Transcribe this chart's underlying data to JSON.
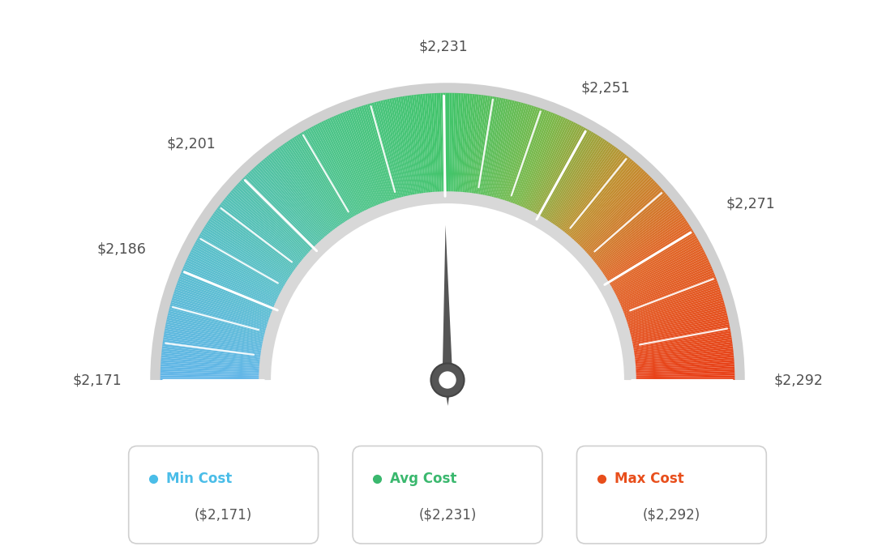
{
  "min_val": 2171,
  "max_val": 2292,
  "avg_val": 2231,
  "tick_labels": [
    "$2,171",
    "$2,186",
    "$2,201",
    "$2,231",
    "$2,251",
    "$2,271",
    "$2,292"
  ],
  "tick_values": [
    2171,
    2186,
    2201,
    2231,
    2251,
    2271,
    2292
  ],
  "legend": [
    {
      "label": "Min Cost",
      "value": "($2,171)",
      "color": "#4abde8"
    },
    {
      "label": "Avg Cost",
      "value": "($2,231)",
      "color": "#3ab86e"
    },
    {
      "label": "Max Cost",
      "value": "($2,292)",
      "color": "#e84e1b"
    }
  ],
  "background_color": "#ffffff",
  "needle_value": 2231,
  "color_stops": [
    [
      0.0,
      "#62b6e8"
    ],
    [
      0.15,
      "#5abfcc"
    ],
    [
      0.35,
      "#4dc48a"
    ],
    [
      0.5,
      "#42c46a"
    ],
    [
      0.62,
      "#7ab84a"
    ],
    [
      0.72,
      "#c09030"
    ],
    [
      0.82,
      "#e06828"
    ],
    [
      1.0,
      "#e84018"
    ]
  ]
}
